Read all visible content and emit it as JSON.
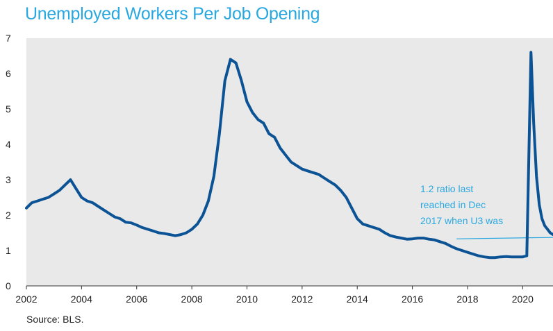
{
  "title": "Unemployed Workers Per Job Opening",
  "source": "Source: BLS.",
  "colors": {
    "line": "#0b5394",
    "title": "#29a8e0",
    "annotation": "#29a8e0",
    "plot_bg": "#e9e9e9"
  },
  "chart_data": {
    "type": "line",
    "title": "Unemployed Workers Per Job Opening",
    "xlabel": "",
    "ylabel": "",
    "xlim": [
      2002,
      2021.1
    ],
    "ylim": [
      0,
      7
    ],
    "grid": false,
    "x_ticks": [
      "2002",
      "2004",
      "2006",
      "2008",
      "2010",
      "2012",
      "2014",
      "2016",
      "2018",
      "2020"
    ],
    "y_ticks": [
      "0",
      "1",
      "2",
      "3",
      "4",
      "5",
      "6",
      "7"
    ],
    "series": [
      {
        "x": [
          2002.0,
          2002.2,
          2002.4,
          2002.6,
          2002.8,
          2003.0,
          2003.2,
          2003.4,
          2003.6,
          2003.8,
          2004.0,
          2004.2,
          2004.4,
          2004.6,
          2004.8,
          2005.0,
          2005.2,
          2005.4,
          2005.6,
          2005.8,
          2006.0,
          2006.2,
          2006.4,
          2006.6,
          2006.8,
          2007.0,
          2007.2,
          2007.4,
          2007.6,
          2007.8,
          2008.0,
          2008.2,
          2008.4,
          2008.6,
          2008.8,
          2009.0,
          2009.2,
          2009.4,
          2009.6,
          2009.8,
          2010.0,
          2010.2,
          2010.4,
          2010.6,
          2010.8,
          2011.0,
          2011.2,
          2011.4,
          2011.6,
          2011.8,
          2012.0,
          2012.2,
          2012.4,
          2012.6,
          2012.8,
          2013.0,
          2013.2,
          2013.4,
          2013.6,
          2013.8,
          2014.0,
          2014.2,
          2014.4,
          2014.6,
          2014.8,
          2015.0,
          2015.2,
          2015.4,
          2015.6,
          2015.8,
          2016.0,
          2016.2,
          2016.4,
          2016.6,
          2016.8,
          2017.0,
          2017.2,
          2017.4,
          2017.6,
          2017.8,
          2018.0,
          2018.2,
          2018.4,
          2018.6,
          2018.8,
          2019.0,
          2019.2,
          2019.4,
          2019.6,
          2019.8,
          2020.0,
          2020.15,
          2020.3,
          2020.4,
          2020.5,
          2020.6,
          2020.7,
          2020.8,
          2020.9,
          2021.0,
          2021.1
        ],
        "values": [
          2.2,
          2.35,
          2.4,
          2.45,
          2.5,
          2.6,
          2.7,
          2.85,
          3.0,
          2.75,
          2.5,
          2.4,
          2.35,
          2.25,
          2.15,
          2.05,
          1.95,
          1.9,
          1.8,
          1.78,
          1.72,
          1.65,
          1.6,
          1.55,
          1.5,
          1.48,
          1.45,
          1.42,
          1.45,
          1.5,
          1.6,
          1.75,
          2.0,
          2.4,
          3.1,
          4.3,
          5.8,
          6.4,
          6.3,
          5.8,
          5.2,
          4.9,
          4.7,
          4.6,
          4.3,
          4.2,
          3.9,
          3.7,
          3.5,
          3.4,
          3.3,
          3.25,
          3.2,
          3.15,
          3.05,
          2.95,
          2.85,
          2.7,
          2.5,
          2.2,
          1.9,
          1.75,
          1.7,
          1.65,
          1.6,
          1.5,
          1.42,
          1.38,
          1.35,
          1.32,
          1.33,
          1.35,
          1.35,
          1.32,
          1.3,
          1.25,
          1.2,
          1.12,
          1.05,
          1.0,
          0.95,
          0.9,
          0.85,
          0.82,
          0.8,
          0.8,
          0.82,
          0.83,
          0.82,
          0.82,
          0.82,
          0.85,
          6.6,
          4.6,
          3.1,
          2.3,
          1.9,
          1.7,
          1.6,
          1.5,
          1.45
        ]
      }
    ],
    "annotations": [
      {
        "lines": [
          "1.2 ratio last",
          "reached in Dec",
          "2017 when U3 was"
        ],
        "x": 2017.6,
        "y": 1.33
      }
    ]
  }
}
